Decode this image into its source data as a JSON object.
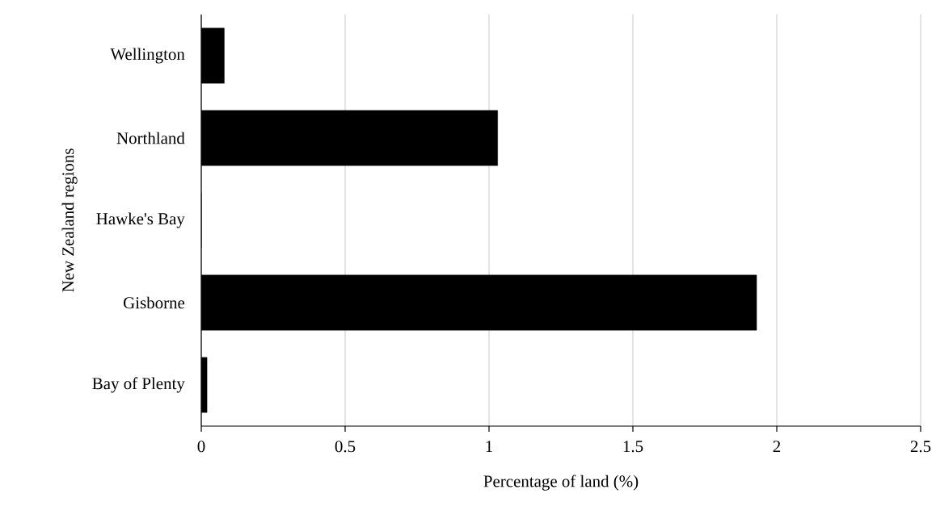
{
  "chart_data": {
    "type": "bar",
    "orientation": "horizontal",
    "xlabel": "Percentage of land (%)",
    "ylabel": "New Zealand regions",
    "categories": [
      "Wellington",
      "Northland",
      "Hawke's Bay",
      "Gisborne",
      "Bay of Plenty"
    ],
    "values": [
      0.08,
      1.03,
      0,
      1.93,
      0.02
    ],
    "color": "#000000",
    "xlim": [
      0,
      2.5
    ],
    "xticks": [
      0,
      0.5,
      1,
      1.5,
      2,
      2.5
    ],
    "grid": "x"
  }
}
